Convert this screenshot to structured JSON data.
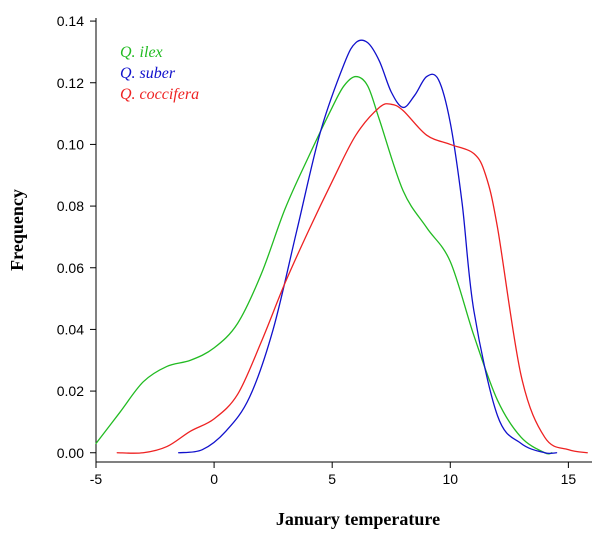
{
  "chart_data": {
    "type": "line",
    "xlabel": "January temperature",
    "ylabel": "Frequency",
    "xlim": [
      -5,
      16
    ],
    "ylim": [
      -0.003,
      0.141
    ],
    "xticks": [
      "-5",
      "0",
      "5",
      "10",
      "15"
    ],
    "yticks": [
      "0.00",
      "0.02",
      "0.04",
      "0.06",
      "0.08",
      "0.10",
      "0.12",
      "0.14"
    ],
    "legend_position": "top-left",
    "grid": false,
    "series": [
      {
        "name": "Q. ilex",
        "color": "#22bb22",
        "x": [
          -5,
          -4,
          -3,
          -2,
          -1,
          0,
          1,
          2,
          3,
          4,
          5,
          5.5,
          6,
          6.5,
          7,
          8,
          9,
          10,
          11,
          12,
          13,
          14,
          14.3
        ],
        "y": [
          0.003,
          0.013,
          0.023,
          0.028,
          0.03,
          0.034,
          0.042,
          0.058,
          0.079,
          0.096,
          0.112,
          0.119,
          0.122,
          0.119,
          0.108,
          0.085,
          0.073,
          0.062,
          0.038,
          0.017,
          0.005,
          0.0,
          0.0
        ]
      },
      {
        "name": "Q. suber",
        "color": "#1111cc",
        "x": [
          -1.5,
          -0.5,
          0.5,
          1.5,
          2.5,
          3.5,
          4.5,
          5.5,
          6,
          6.5,
          7,
          7.5,
          8,
          8.5,
          9,
          9.5,
          10,
          10.5,
          11,
          12,
          13,
          14,
          14.5
        ],
        "y": [
          0.0,
          0.001,
          0.007,
          0.018,
          0.04,
          0.072,
          0.104,
          0.126,
          0.133,
          0.133,
          0.127,
          0.117,
          0.112,
          0.116,
          0.122,
          0.121,
          0.107,
          0.081,
          0.046,
          0.012,
          0.003,
          0.0,
          0.0
        ]
      },
      {
        "name": "Q. coccifera",
        "color": "#ee2222",
        "x": [
          -4.1,
          -3,
          -2,
          -1,
          0,
          1,
          2,
          3,
          4,
          5,
          6,
          7,
          7.5,
          8,
          9,
          10,
          11,
          11.5,
          12,
          13,
          14,
          15,
          15.8
        ],
        "y": [
          0.0,
          0.0,
          0.002,
          0.007,
          0.011,
          0.019,
          0.036,
          0.055,
          0.072,
          0.088,
          0.103,
          0.112,
          0.113,
          0.111,
          0.103,
          0.1,
          0.097,
          0.09,
          0.073,
          0.025,
          0.005,
          0.001,
          0.0
        ]
      }
    ]
  }
}
